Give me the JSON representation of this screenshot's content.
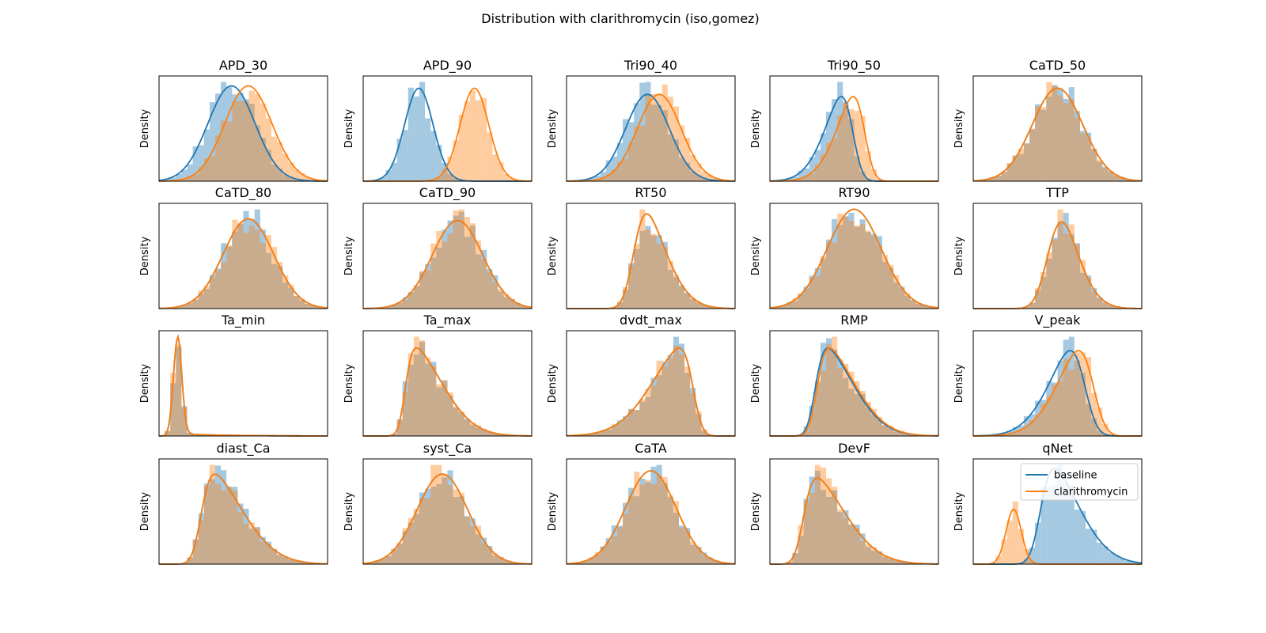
{
  "chart_data": {
    "type": "histogram_kde_grid",
    "title": "Distribution with clarithromycin (iso,gomez)",
    "ylabel": "Density",
    "series_names": [
      "baseline",
      "clarithromycin"
    ],
    "colors": {
      "baseline": "#1f77b4",
      "clarithromycin": "#ff7f0e"
    },
    "legend": {
      "location": "top-right",
      "subplot": "qNet",
      "entries": [
        "baseline",
        "clarithromycin"
      ]
    },
    "x_range": [
      0,
      1
    ],
    "panels": [
      {
        "name": "APD_30",
        "row": 0,
        "col": 0,
        "baseline": {
          "mean": 0.43,
          "sd": 0.14
        },
        "clarithromycin": {
          "mean": 0.53,
          "sd": 0.14
        }
      },
      {
        "name": "APD_90",
        "row": 0,
        "col": 1,
        "baseline": {
          "mean": 0.33,
          "sd": 0.085
        },
        "clarithromycin": {
          "mean": 0.66,
          "sd": 0.085
        }
      },
      {
        "name": "Tri90_40",
        "row": 0,
        "col": 2,
        "baseline": {
          "mean": 0.48,
          "sd": 0.13
        },
        "clarithromycin": {
          "mean": 0.55,
          "sd": 0.13
        }
      },
      {
        "name": "Tri90_50",
        "row": 0,
        "col": 3,
        "baseline": {
          "mean": 0.49,
          "sd": 0.14,
          "skew": -3
        },
        "clarithromycin": {
          "mean": 0.56,
          "sd": 0.14,
          "skew": -3
        }
      },
      {
        "name": "CaTD_50",
        "row": 0,
        "col": 4,
        "baseline": {
          "mean": 0.5,
          "sd": 0.15
        },
        "clarithromycin": {
          "mean": 0.5,
          "sd": 0.15
        }
      },
      {
        "name": "CaTD_80",
        "row": 1,
        "col": 0,
        "baseline": {
          "mean": 0.53,
          "sd": 0.15
        },
        "clarithromycin": {
          "mean": 0.53,
          "sd": 0.15
        }
      },
      {
        "name": "CaTD_90",
        "row": 1,
        "col": 1,
        "baseline": {
          "mean": 0.56,
          "sd": 0.15
        },
        "clarithromycin": {
          "mean": 0.56,
          "sd": 0.15
        }
      },
      {
        "name": "RT50",
        "row": 1,
        "col": 2,
        "baseline": {
          "mean": 0.4,
          "sd": 0.16,
          "skew": 3
        },
        "clarithromycin": {
          "mean": 0.4,
          "sd": 0.16,
          "skew": 3
        }
      },
      {
        "name": "RT90",
        "row": 1,
        "col": 3,
        "baseline": {
          "mean": 0.5,
          "sd": 0.16
        },
        "clarithromycin": {
          "mean": 0.5,
          "sd": 0.16
        }
      },
      {
        "name": "TTP",
        "row": 1,
        "col": 4,
        "baseline": {
          "mean": 0.45,
          "sd": 0.14,
          "skew": 2
        },
        "clarithromycin": {
          "mean": 0.45,
          "sd": 0.14,
          "skew": 2
        }
      },
      {
        "name": "Ta_min",
        "row": 2,
        "col": 0,
        "baseline": {
          "mean": 0.11,
          "sd": 0.025,
          "tail": 0.3
        },
        "clarithromycin": {
          "mean": 0.11,
          "sd": 0.025,
          "tail": 0.3
        }
      },
      {
        "name": "Ta_max",
        "row": 2,
        "col": 1,
        "baseline": {
          "mean": 0.25,
          "sd": 0.2,
          "skew": 6
        },
        "clarithromycin": {
          "mean": 0.25,
          "sd": 0.2,
          "skew": 6
        }
      },
      {
        "name": "dvdt_max",
        "row": 2,
        "col": 2,
        "baseline": {
          "mean": 0.75,
          "sd": 0.22,
          "skew": -5
        },
        "clarithromycin": {
          "mean": 0.75,
          "sd": 0.22,
          "skew": -5
        }
      },
      {
        "name": "RMP",
        "row": 2,
        "col": 3,
        "baseline": {
          "mean": 0.27,
          "sd": 0.2,
          "skew": 5
        },
        "clarithromycin": {
          "mean": 0.28,
          "sd": 0.2,
          "skew": 5
        }
      },
      {
        "name": "V_peak",
        "row": 2,
        "col": 4,
        "baseline": {
          "mean": 0.66,
          "sd": 0.18,
          "skew": -3
        },
        "clarithromycin": {
          "mean": 0.71,
          "sd": 0.18,
          "skew": -3
        }
      },
      {
        "name": "diast_Ca",
        "row": 3,
        "col": 0,
        "baseline": {
          "mean": 0.25,
          "sd": 0.22,
          "skew": 5
        },
        "clarithromycin": {
          "mean": 0.25,
          "sd": 0.22,
          "skew": 5
        }
      },
      {
        "name": "syst_Ca",
        "row": 3,
        "col": 1,
        "baseline": {
          "mean": 0.47,
          "sd": 0.15
        },
        "clarithromycin": {
          "mean": 0.47,
          "sd": 0.15
        }
      },
      {
        "name": "CaTA",
        "row": 3,
        "col": 2,
        "baseline": {
          "mean": 0.5,
          "sd": 0.15
        },
        "clarithromycin": {
          "mean": 0.5,
          "sd": 0.15
        }
      },
      {
        "name": "DevF",
        "row": 3,
        "col": 3,
        "baseline": {
          "mean": 0.2,
          "sd": 0.22,
          "skew": 5
        },
        "clarithromycin": {
          "mean": 0.2,
          "sd": 0.22,
          "skew": 5
        }
      },
      {
        "name": "qNet",
        "row": 3,
        "col": 4,
        "baseline": {
          "mean": 0.4,
          "sd": 0.2,
          "skew": 4
        },
        "clarithromycin": {
          "mean": 0.24,
          "sd": 0.045
        }
      }
    ]
  }
}
